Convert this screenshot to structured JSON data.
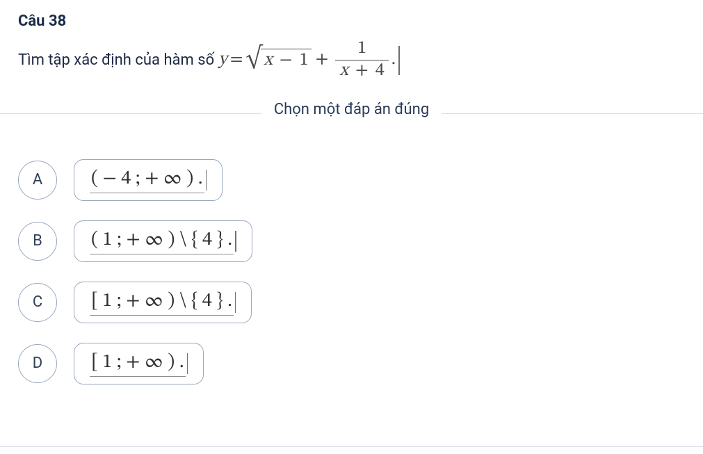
{
  "question": {
    "title": "Câu 38",
    "prompt_text": "Tìm tập xác định của hàm số",
    "formula": {
      "lhs_var": "y",
      "equals": "=",
      "sqrt_symbol": "√",
      "radicand_var": "x",
      "radicand_op": "−",
      "radicand_const": "1",
      "plus": "+",
      "frac_num": "1",
      "frac_den_var": "x",
      "frac_den_op": "+",
      "frac_den_const": "4",
      "trailing_dot": "."
    },
    "instruction": "Chọn một đáp án đúng"
  },
  "options": [
    {
      "letter": "A",
      "expr": "( − 4 ; + ∞ ) .",
      "has_cursor": true
    },
    {
      "letter": "B",
      "expr": "( 1 ; + ∞ ) \\ { 4 } .",
      "has_cursor": true
    },
    {
      "letter": "C",
      "expr": "[ 1 ; + ∞ ) \\ { 4 } .",
      "has_cursor": true
    },
    {
      "letter": "D",
      "expr": "[ 1 ; + ∞ ) .",
      "has_cursor": true
    }
  ],
  "style": {
    "text_color": "#1a2b48",
    "math_color": "#4a4a4a",
    "border_color": "#9aa7be",
    "divider_color": "#d7dbe3",
    "background": "#ffffff",
    "title_fontsize": 22,
    "math_fontsize": 26,
    "option_fontsize": 28,
    "letter_circle_diameter": 56,
    "answer_border_radius": 14
  }
}
